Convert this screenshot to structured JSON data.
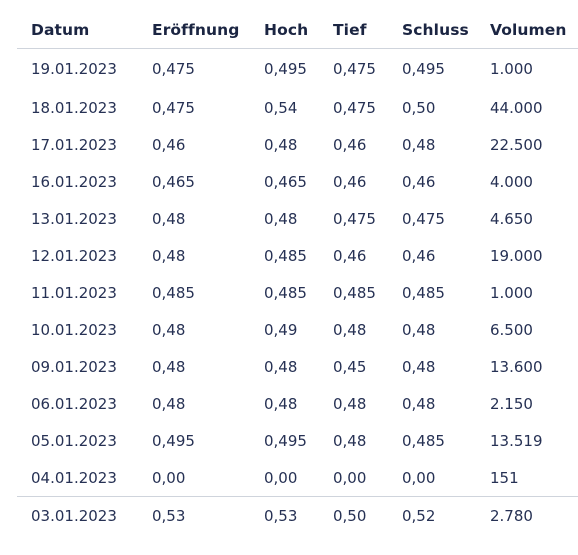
{
  "table": {
    "columns": [
      "Datum",
      "Eröffnung",
      "Hoch",
      "Tief",
      "Schluss",
      "Volumen"
    ],
    "rows": [
      [
        "19.01.2023",
        "0,475",
        "0,495",
        "0,475",
        "0,495",
        "1.000"
      ],
      [
        "18.01.2023",
        "0,475",
        "0,54",
        "0,475",
        "0,50",
        "44.000"
      ],
      [
        "17.01.2023",
        "0,46",
        "0,48",
        "0,46",
        "0,48",
        "22.500"
      ],
      [
        "16.01.2023",
        "0,465",
        "0,465",
        "0,46",
        "0,46",
        "4.000"
      ],
      [
        "13.01.2023",
        "0,48",
        "0,48",
        "0,475",
        "0,475",
        "4.650"
      ],
      [
        "12.01.2023",
        "0,48",
        "0,485",
        "0,46",
        "0,46",
        "19.000"
      ],
      [
        "11.01.2023",
        "0,485",
        "0,485",
        "0,485",
        "0,485",
        "1.000"
      ],
      [
        "10.01.2023",
        "0,48",
        "0,49",
        "0,48",
        "0,48",
        "6.500"
      ],
      [
        "09.01.2023",
        "0,48",
        "0,48",
        "0,45",
        "0,48",
        "13.600"
      ],
      [
        "06.01.2023",
        "0,48",
        "0,48",
        "0,48",
        "0,48",
        "2.150"
      ],
      [
        "05.01.2023",
        "0,495",
        "0,495",
        "0,48",
        "0,485",
        "13.519"
      ],
      [
        "04.01.2023",
        "0,00",
        "0,00",
        "0,00",
        "0,00",
        "151"
      ],
      [
        "03.01.2023",
        "0,53",
        "0,53",
        "0,50",
        "0,52",
        "2.780"
      ]
    ]
  }
}
